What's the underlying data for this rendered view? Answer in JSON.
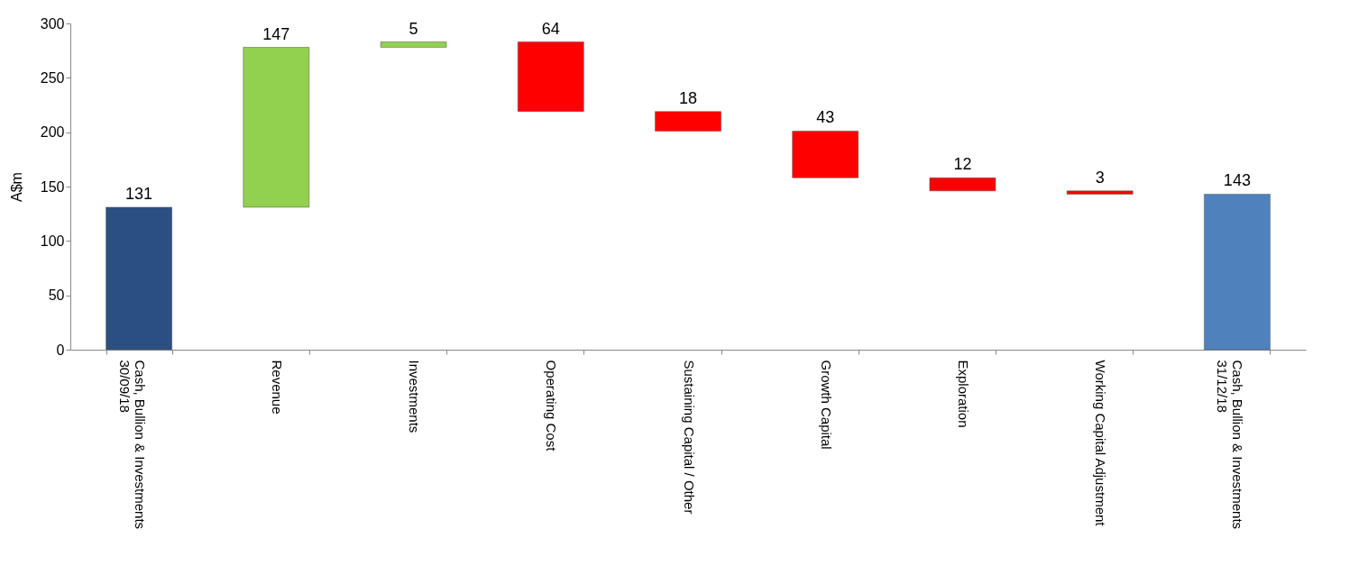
{
  "chart_data": {
    "type": "bar",
    "ylabel": "A$m",
    "categories": [
      "Cash, Bullion & Investments\n30/09/18",
      "Revenue",
      "Investments",
      "Operating Cost",
      "Sustaining Capital / Other",
      "Growth Capital",
      "Exploration",
      "Working Capital Adjustment",
      "Cash, Bullion & Investments\n31/12/18"
    ],
    "values": [
      131,
      147,
      5,
      64,
      18,
      43,
      12,
      3,
      143
    ],
    "base": [
      0,
      131,
      278,
      219,
      201,
      158,
      146,
      143,
      0
    ],
    "colors": [
      "#2b4f80",
      "#92d050",
      "#92d050",
      "#ff0000",
      "#ff0000",
      "#ff0000",
      "#ff0000",
      "#ff0000",
      "#4f81bd"
    ],
    "ylim": [
      0,
      300
    ],
    "yticks": [
      0,
      50,
      100,
      150,
      200,
      250,
      300
    ],
    "data_labels": true,
    "grid": false,
    "legend": false
  }
}
